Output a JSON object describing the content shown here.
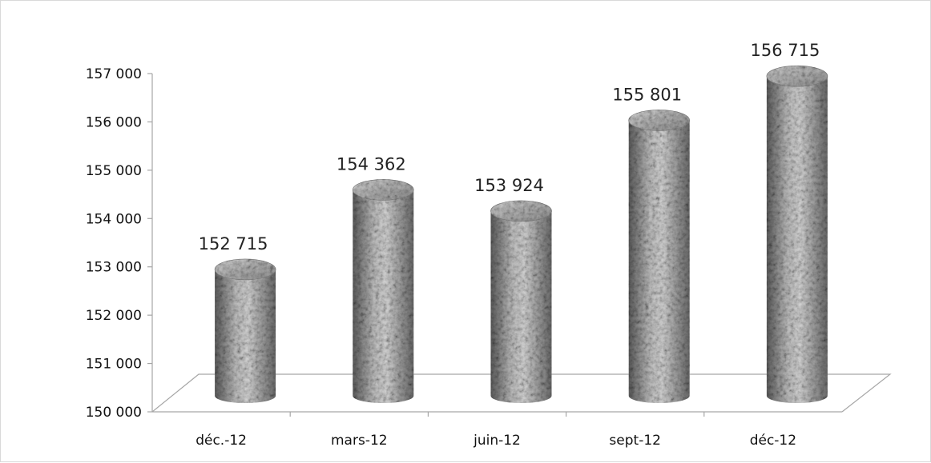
{
  "chart_data": {
    "type": "bar",
    "style": "3d-cylinder",
    "title": "",
    "xlabel": "",
    "ylabel": "",
    "categories": [
      "déc.-12",
      "mars-12",
      "juin-12",
      "sept-12",
      "déc-12"
    ],
    "values": [
      152715,
      154362,
      153924,
      155801,
      156715
    ],
    "value_labels": [
      "152 715",
      "154 362",
      "153 924",
      "155 801",
      "156 715"
    ],
    "ylim": [
      150000,
      157000
    ],
    "yticks": [
      150000,
      151000,
      152000,
      153000,
      154000,
      155000,
      156000,
      157000
    ],
    "ytick_labels": [
      "150 000",
      "151 000",
      "152 000",
      "153 000",
      "154 000",
      "155 000",
      "156 000",
      "157 000"
    ],
    "grid": false,
    "legend": "none",
    "bar_color": "#8a8a8a"
  }
}
